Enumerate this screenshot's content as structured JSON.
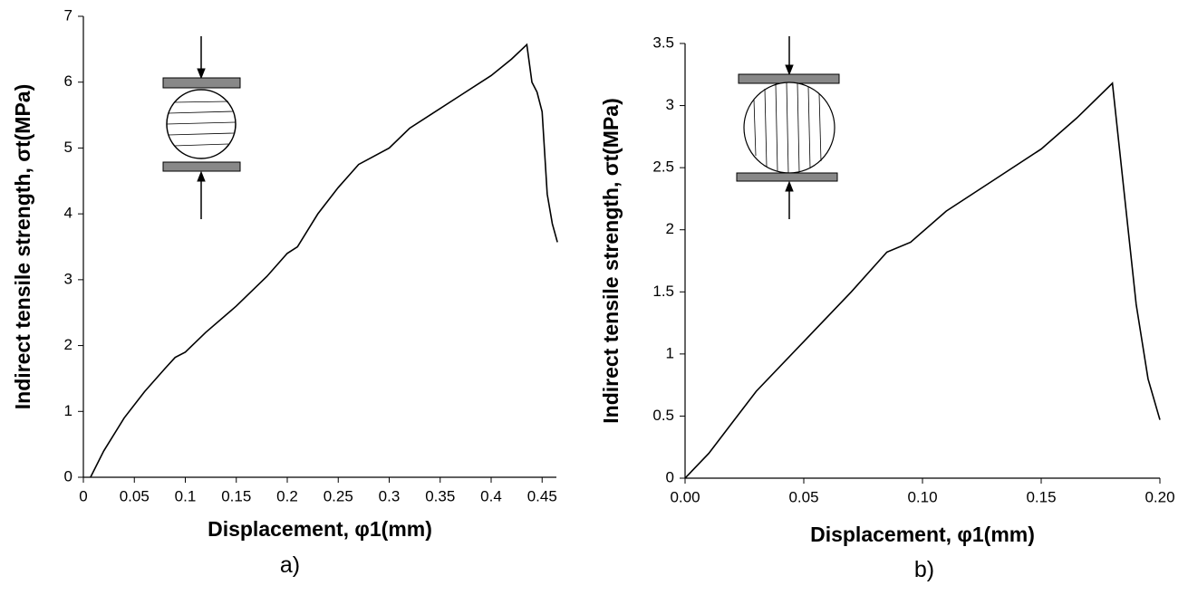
{
  "chart_data": [
    {
      "type": "line",
      "caption": "a)",
      "x_label": "Displacement, φ1(mm)",
      "y_label": "Indirect tensile strength, σt(MPa)",
      "xlim": [
        0,
        0.464
      ],
      "ylim": [
        0,
        7
      ],
      "xticks": [
        0,
        0.05,
        0.1,
        0.15,
        0.2,
        0.25,
        0.3,
        0.35,
        0.4,
        0.45
      ],
      "yticks": [
        0,
        1,
        2,
        3,
        4,
        5,
        6,
        7
      ],
      "series": [
        {
          "name": "a",
          "color": "#000000",
          "x": [
            0.007,
            0.02,
            0.04,
            0.06,
            0.08,
            0.09,
            0.1,
            0.12,
            0.15,
            0.18,
            0.2,
            0.21,
            0.23,
            0.25,
            0.27,
            0.3,
            0.32,
            0.34,
            0.37,
            0.4,
            0.42,
            0.435,
            0.44,
            0.445,
            0.45,
            0.455,
            0.46,
            0.465
          ],
          "values": [
            0,
            0.4,
            0.9,
            1.3,
            1.65,
            1.82,
            1.9,
            2.2,
            2.6,
            3.05,
            3.4,
            3.5,
            4.0,
            4.4,
            4.75,
            5.0,
            5.3,
            5.5,
            5.8,
            6.1,
            6.35,
            6.57,
            6.0,
            5.85,
            5.55,
            4.3,
            3.85,
            3.57
          ]
        }
      ]
    },
    {
      "type": "line",
      "caption": "b)",
      "x_label": "Displacement, φ1(mm)",
      "y_label": "Indirect tensile strength, σt(MPa)",
      "xlim": [
        0,
        0.2
      ],
      "ylim": [
        0,
        3.5
      ],
      "xticks": [
        {
          "value": 0,
          "label": "0.00"
        },
        0.05,
        {
          "value": 0.1,
          "label": "0.10"
        },
        0.15,
        {
          "value": 0.2,
          "label": "0.20"
        }
      ],
      "yticks": [
        0,
        0.5,
        1,
        1.5,
        2,
        2.5,
        3,
        3.5
      ],
      "series": [
        {
          "name": "b",
          "color": "#000000",
          "x": [
            0,
            0.01,
            0.02,
            0.03,
            0.05,
            0.07,
            0.085,
            0.095,
            0.11,
            0.13,
            0.15,
            0.165,
            0.18,
            0.19,
            0.195,
            0.2
          ],
          "values": [
            0,
            0.2,
            0.45,
            0.7,
            1.1,
            1.5,
            1.82,
            1.9,
            2.15,
            2.4,
            2.65,
            2.9,
            3.18,
            1.4,
            0.8,
            0.47
          ]
        }
      ]
    }
  ]
}
